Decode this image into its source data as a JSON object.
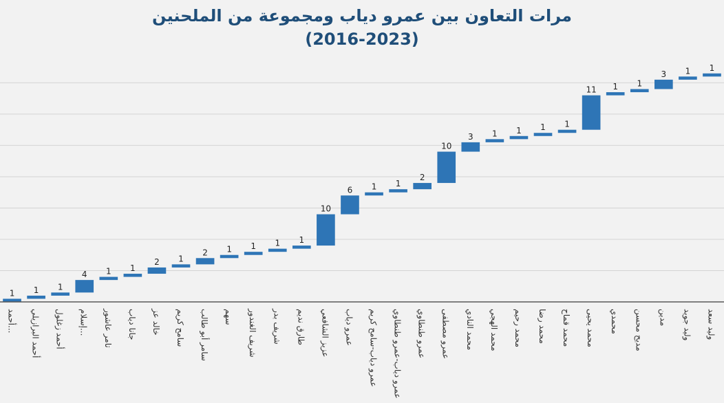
{
  "chart_data": {
    "type": "bar",
    "subtype": "waterfall",
    "title": "مرات التعاون بين عمرو دياب ومجموعة من الملحنين",
    "subtitle": "(2016-2023)",
    "categories": [
      "أحمد...",
      "أحمد البرازيلي",
      "أحمد زغلول",
      "إسلام...",
      "تامر عاشور",
      "جانا دياب",
      "خالد عز",
      "سامح كريم",
      "سامر أبو طالب",
      "سهم",
      "شريف الغندور",
      "شريف بدر",
      "طارق نديم",
      "عزيز الشافعي",
      "عمرو دياب",
      "عمرو دياب-سامح كريم",
      "عمرو دياب-عمرو طنطاوي",
      "عمرو طنطاوي",
      "عمرو مصطفى",
      "محمد النادي",
      "محمد الهجي",
      "محمد رحيم",
      "محمد رضا",
      "محمد قماح",
      "محمد يحيى",
      "محمدي",
      "مديح محسن",
      "مدين",
      "وليد جويد",
      "وليد سعد"
    ],
    "values": [
      1,
      1,
      1,
      4,
      1,
      1,
      2,
      1,
      2,
      1,
      1,
      1,
      1,
      10,
      6,
      1,
      1,
      2,
      10,
      3,
      1,
      1,
      1,
      1,
      11,
      1,
      1,
      3,
      1,
      1
    ],
    "cumulative": true,
    "ylim": [
      0,
      78
    ],
    "grid": true,
    "colors": {
      "bar": "#2e75b6",
      "title": "#1f4e79",
      "grid": "#d4d4d4",
      "axis": "#595959"
    }
  }
}
